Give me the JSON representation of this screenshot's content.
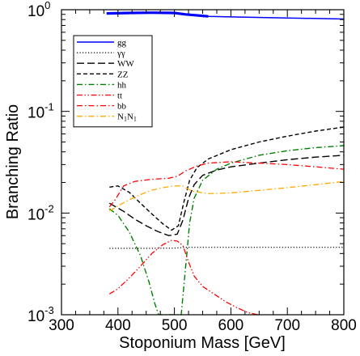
{
  "chart_data": {
    "type": "line",
    "xlabel": "Stoponium Mass  [GeV]",
    "ylabel": "Branching  Ratio",
    "xlim": [
      300,
      800
    ],
    "ylim": [
      0.001,
      1
    ],
    "yscale": "log",
    "x_ticks": [
      300,
      400,
      500,
      600,
      700,
      800
    ],
    "x_tick_labels": [
      "300",
      "400",
      "500",
      "600",
      "700",
      "800"
    ],
    "y_ticks": [
      0.001,
      0.01,
      0.1,
      1
    ],
    "y_tick_labels": [
      {
        "base": "10",
        "exp": "-3"
      },
      {
        "base": "10",
        "exp": "-2"
      },
      {
        "base": "10",
        "exp": "-1"
      },
      {
        "base": "10",
        "exp": "0"
      }
    ],
    "legend_position": "top-left",
    "series": [
      {
        "name": "gg",
        "label_parts": [
          {
            "t": "gg"
          }
        ],
        "color": "#0000ff",
        "dash": "",
        "width": 1.5,
        "thick_range": [
          380,
          585
        ],
        "points": [
          [
            380,
            0.92
          ],
          [
            420,
            0.93
          ],
          [
            460,
            0.935
          ],
          [
            500,
            0.93
          ],
          [
            520,
            0.9
          ],
          [
            560,
            0.86
          ],
          [
            600,
            0.85
          ],
          [
            700,
            0.83
          ],
          [
            800,
            0.81
          ]
        ]
      },
      {
        "name": "γγ",
        "label_parts": [
          {
            "t": "γγ"
          }
        ],
        "color": "#000000",
        "dash": "1.2,2.3",
        "width": 1.2,
        "points": [
          [
            385,
            0.0045
          ],
          [
            450,
            0.0045
          ],
          [
            500,
            0.00452
          ],
          [
            520,
            0.0046
          ],
          [
            600,
            0.0046
          ],
          [
            700,
            0.0046
          ],
          [
            800,
            0.0046
          ]
        ]
      },
      {
        "name": "WW",
        "label_parts": [
          {
            "t": "WW"
          }
        ],
        "color": "#000000",
        "dash": "9,4",
        "width": 1.4,
        "points": [
          [
            385,
            0.0125
          ],
          [
            410,
            0.0104
          ],
          [
            430,
            0.0087
          ],
          [
            450,
            0.0075
          ],
          [
            470,
            0.0066
          ],
          [
            490,
            0.006
          ],
          [
            505,
            0.0062
          ],
          [
            515,
            0.0085
          ],
          [
            525,
            0.014
          ],
          [
            535,
            0.019
          ],
          [
            550,
            0.0235
          ],
          [
            575,
            0.0265
          ],
          [
            600,
            0.0285
          ],
          [
            650,
            0.031
          ],
          [
            700,
            0.0335
          ],
          [
            750,
            0.0355
          ],
          [
            800,
            0.037
          ]
        ]
      },
      {
        "name": "ZZ",
        "label_parts": [
          {
            "t": "ZZ"
          }
        ],
        "color": "#000000",
        "dash": "5,3",
        "width": 1.4,
        "points": [
          [
            385,
            0.018
          ],
          [
            400,
            0.0185
          ],
          [
            420,
            0.016
          ],
          [
            440,
            0.0125
          ],
          [
            460,
            0.0098
          ],
          [
            480,
            0.0078
          ],
          [
            495,
            0.0068
          ],
          [
            507,
            0.0075
          ],
          [
            517,
            0.013
          ],
          [
            527,
            0.021
          ],
          [
            540,
            0.028
          ],
          [
            560,
            0.034
          ],
          [
            600,
            0.042
          ],
          [
            650,
            0.05
          ],
          [
            700,
            0.057
          ],
          [
            750,
            0.064
          ],
          [
            800,
            0.07
          ]
        ]
      },
      {
        "name": "hh",
        "label_parts": [
          {
            "t": "hh"
          }
        ],
        "color": "#008000",
        "dash": "7,3,1.5,3",
        "width": 1.4,
        "points": [
          [
            385,
            0.011
          ],
          [
            400,
            0.0095
          ],
          [
            420,
            0.0065
          ],
          [
            440,
            0.0038
          ],
          [
            455,
            0.0021
          ],
          [
            465,
            0.0013
          ],
          [
            472,
            0.001
          ],
          [
            512,
            0.001
          ],
          [
            517,
            0.002
          ],
          [
            522,
            0.004
          ],
          [
            527,
            0.008
          ],
          [
            535,
            0.014
          ],
          [
            550,
            0.021
          ],
          [
            575,
            0.027
          ],
          [
            600,
            0.031
          ],
          [
            650,
            0.037
          ],
          [
            700,
            0.041
          ],
          [
            750,
            0.044
          ],
          [
            800,
            0.046
          ]
        ]
      },
      {
        "name": "tt",
        "label_parts": [
          {
            "t": "tt"
          }
        ],
        "color": "#ff0000",
        "dash": "7,2.5,1.5,2.5,1.5,2.5",
        "width": 1.3,
        "points": [
          [
            385,
            0.0016
          ],
          [
            400,
            0.0018
          ],
          [
            420,
            0.0023
          ],
          [
            440,
            0.003
          ],
          [
            460,
            0.004
          ],
          [
            480,
            0.0049
          ],
          [
            495,
            0.0054
          ],
          [
            505,
            0.0053
          ],
          [
            515,
            0.0048
          ],
          [
            525,
            0.0033
          ],
          [
            535,
            0.0024
          ],
          [
            550,
            0.0019
          ],
          [
            570,
            0.0016
          ],
          [
            590,
            0.00135
          ],
          [
            610,
            0.00118
          ],
          [
            630,
            0.00105
          ],
          [
            648,
            0.001
          ]
        ]
      },
      {
        "name": "bb",
        "label_parts": [
          {
            "t": "bb"
          }
        ],
        "color": "#ff0000",
        "dash": "7,3,1.5,3",
        "width": 1.3,
        "points": [
          [
            385,
            0.0115
          ],
          [
            395,
            0.0135
          ],
          [
            410,
            0.0185
          ],
          [
            430,
            0.0205
          ],
          [
            460,
            0.0215
          ],
          [
            490,
            0.022
          ],
          [
            505,
            0.023
          ],
          [
            520,
            0.026
          ],
          [
            540,
            0.029
          ],
          [
            560,
            0.031
          ],
          [
            600,
            0.032
          ],
          [
            650,
            0.031
          ],
          [
            700,
            0.03
          ],
          [
            750,
            0.0285
          ],
          [
            800,
            0.027
          ]
        ]
      },
      {
        "name": "N1N1",
        "label_parts": [
          {
            "t": "N"
          },
          {
            "t": "1",
            "sub": true
          },
          {
            "t": "N"
          },
          {
            "t": "1",
            "sub": true
          }
        ],
        "color": "#ffaa00",
        "dash": "7,3,1.5,3",
        "width": 1.3,
        "points": [
          [
            385,
            0.0105
          ],
          [
            400,
            0.0118
          ],
          [
            420,
            0.0135
          ],
          [
            440,
            0.0152
          ],
          [
            460,
            0.0168
          ],
          [
            480,
            0.0178
          ],
          [
            500,
            0.0185
          ],
          [
            515,
            0.0185
          ],
          [
            530,
            0.0165
          ],
          [
            560,
            0.0155
          ],
          [
            600,
            0.0158
          ],
          [
            650,
            0.0167
          ],
          [
            700,
            0.0178
          ],
          [
            750,
            0.019
          ],
          [
            800,
            0.0205
          ]
        ]
      }
    ]
  }
}
